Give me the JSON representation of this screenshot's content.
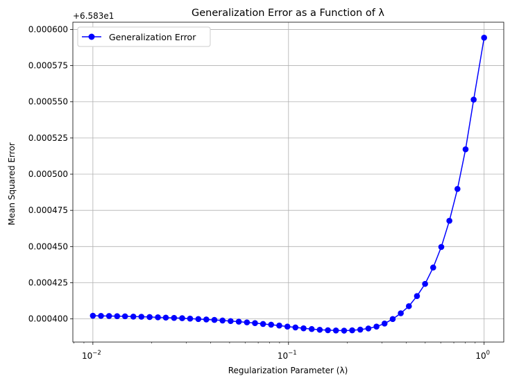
{
  "chart_data": {
    "type": "line",
    "title": "Generalization Error as a Function of λ",
    "xlabel": "Regularization Parameter (λ)",
    "ylabel": "Mean Squared Error",
    "x_scale": "log",
    "y_offset_label": "+6.583e1",
    "xlim": [
      0.0079,
      1.26
    ],
    "ylim": [
      0.000384,
      0.000605
    ],
    "x_ticks": [
      {
        "value": 0.01,
        "base": "10",
        "exp": "−2"
      },
      {
        "value": 0.1,
        "base": "10",
        "exp": "−1"
      },
      {
        "value": 1,
        "base": "10",
        "exp": "0"
      }
    ],
    "y_ticks": [
      {
        "value": 0.0004,
        "label": "0.000400"
      },
      {
        "value": 0.000425,
        "label": "0.000425"
      },
      {
        "value": 0.00045,
        "label": "0.000450"
      },
      {
        "value": 0.000475,
        "label": "0.000475"
      },
      {
        "value": 0.0005,
        "label": "0.000500"
      },
      {
        "value": 0.000525,
        "label": "0.000525"
      },
      {
        "value": 0.00055,
        "label": "0.000550"
      },
      {
        "value": 0.000575,
        "label": "0.000575"
      },
      {
        "value": 0.0006,
        "label": "0.000600"
      }
    ],
    "grid": true,
    "legend_position": "top-left",
    "series": [
      {
        "name": "Generalization Error",
        "color": "#0000ff",
        "marker": "circle",
        "x": [
          0.01,
          0.011,
          0.0121,
          0.0133,
          0.0146,
          0.0161,
          0.0177,
          0.0195,
          0.0215,
          0.0236,
          0.026,
          0.0286,
          0.0314,
          0.0346,
          0.038,
          0.0418,
          0.046,
          0.0506,
          0.0557,
          0.0613,
          0.0674,
          0.0741,
          0.0815,
          0.0897,
          0.0987,
          0.1085,
          0.1194,
          0.1314,
          0.1445,
          0.159,
          0.1748,
          0.1924,
          0.2116,
          0.2327,
          0.2561,
          0.2817,
          0.3098,
          0.3409,
          0.375,
          0.4125,
          0.4537,
          0.4991,
          0.549,
          0.604,
          0.6644,
          0.7308,
          0.8039,
          0.8843,
          1.0
        ],
        "y": [
          0.0004022,
          0.0004021,
          0.000402,
          0.0004019,
          0.0004018,
          0.0004016,
          0.0004015,
          0.0004013,
          0.0004011,
          0.0004009,
          0.0004007,
          0.0004005,
          0.0004002,
          0.0003999,
          0.0003996,
          0.0003993,
          0.0003989,
          0.0003985,
          0.0003981,
          0.0003976,
          0.0003971,
          0.0003965,
          0.000396,
          0.0003954,
          0.0003947,
          0.0003941,
          0.0003935,
          0.000393,
          0.0003925,
          0.0003922,
          0.000392,
          0.0003919,
          0.0003921,
          0.0003926,
          0.0003934,
          0.0003947,
          0.0003968,
          0.0003999,
          0.0004039,
          0.0004088,
          0.0004158,
          0.0004242,
          0.0004355,
          0.0004497,
          0.0004678,
          0.0004898,
          0.0005172,
          0.0005515,
          0.0005943
        ]
      }
    ]
  }
}
